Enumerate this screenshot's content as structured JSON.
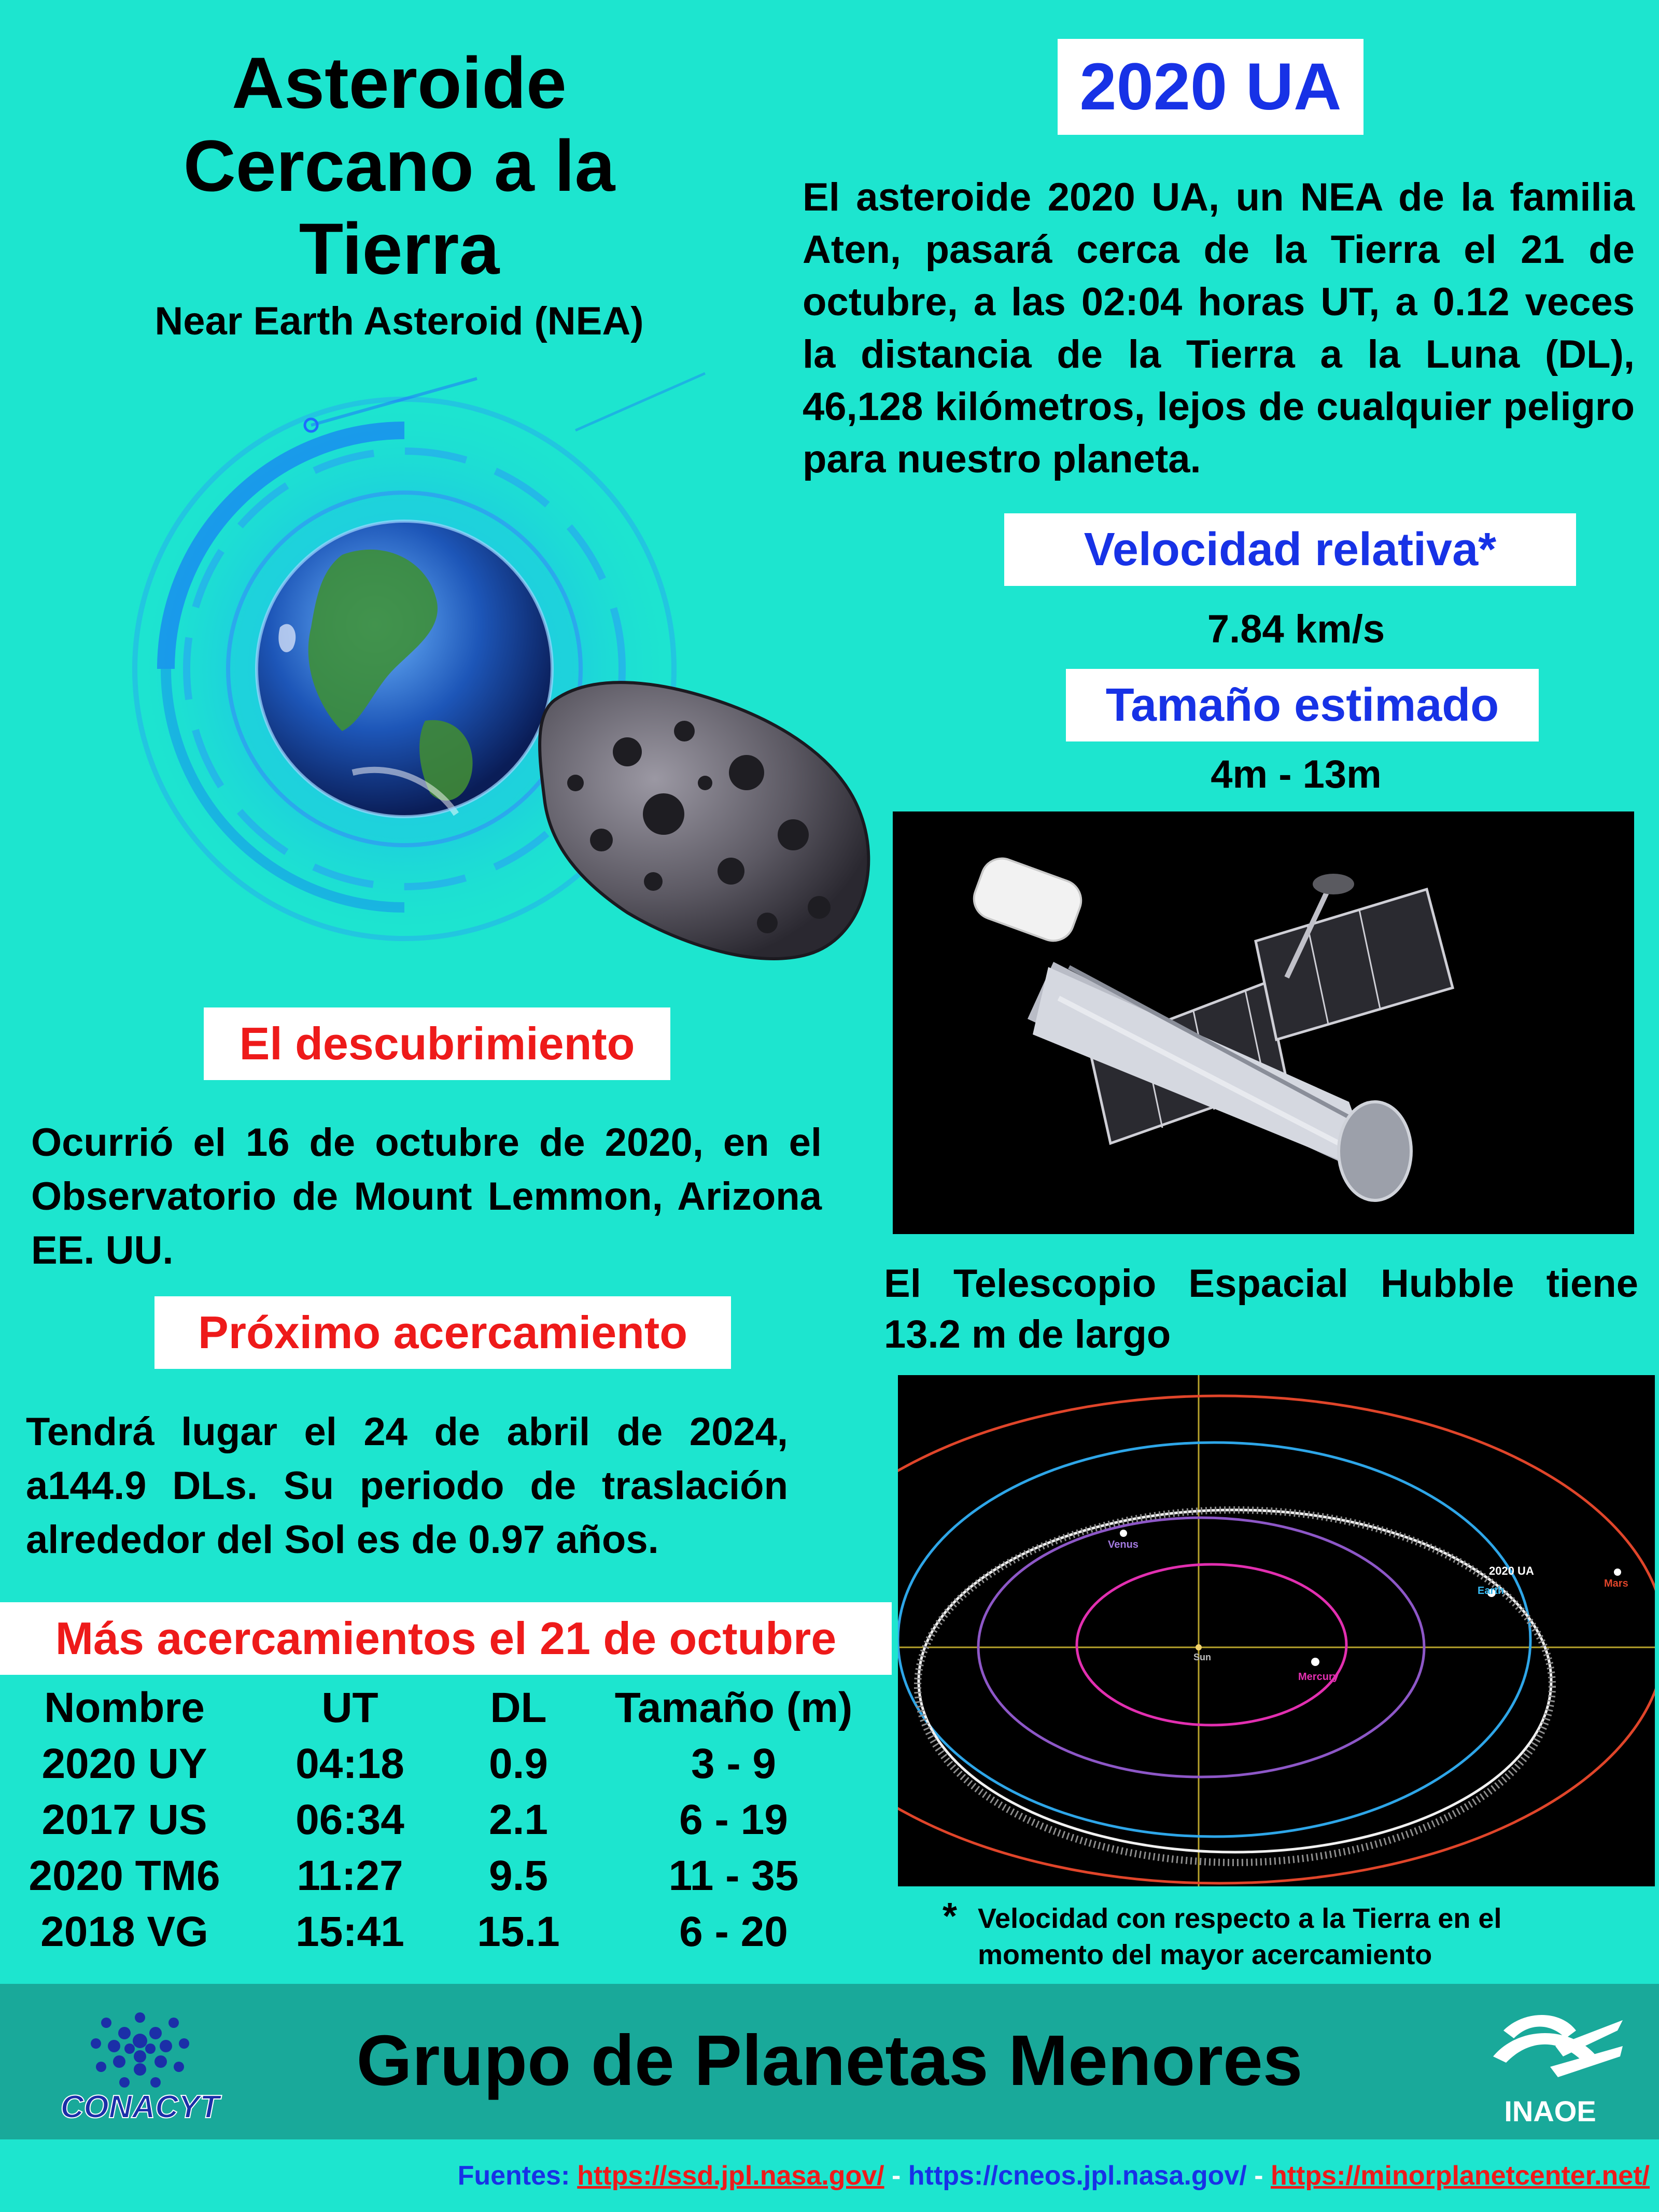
{
  "title": {
    "line1": "Asteroide",
    "line2": "Cercano a la",
    "line3": "Tierra",
    "subtitle": "Near Earth Asteroid (NEA)"
  },
  "asteroid_name": "2020 UA",
  "intro": "El  asteroide 2020 UA, un NEA de  la familia Aten, pasará cerca de la Tierra el 21 de octubre, a las 02:04 horas UT, a 0.12 veces la distancia de la Tierra a la Luna (DL), 46,128 kilómetros, lejos de cualquier peligro para nuestro planeta.",
  "velocity": {
    "label": "Velocidad relativa*",
    "value": "7.84 km/s"
  },
  "size": {
    "label": "Tamaño estimado",
    "value": "4m - 13m"
  },
  "discovery": {
    "label": "El descubrimiento",
    "text": "Ocurrió el 16 de octubre de 2020, en el Observatorio de Mount Lemmon, Arizona EE. UU."
  },
  "next_approach": {
    "label": "Próximo acercamiento",
    "text": "Tendrá lugar el 24 de abril de 2024, a144.9 DLs. Su periodo de traslación alrededor del Sol es de 0.97  años."
  },
  "hubble_caption": "El Telescopio Espacial Hubble tiene 13.2 m de largo",
  "orbit_labels": {
    "venus": "Venus",
    "earth": "Earth",
    "asteroid": "2020 UA",
    "mars": "Mars",
    "sun": "Sun",
    "mercury": "Mercury"
  },
  "more_approaches": {
    "heading": "Más acercamientos el 21 de octubre",
    "columns": [
      "Nombre",
      "UT",
      "DL",
      "Tamaño (m)"
    ],
    "rows": [
      [
        "2020 UY",
        "04:18",
        "0.9",
        "3 - 9"
      ],
      [
        "2017 US",
        "06:34",
        "2.1",
        "6 - 19"
      ],
      [
        "2020 TM6",
        "11:27",
        "9.5",
        "11 - 35"
      ],
      [
        "2018 VG",
        "15:41",
        "15.1",
        "6 - 20"
      ]
    ]
  },
  "footnote": {
    "mark": "*",
    "line1": "Velocidad con respecto a la Tierra en el",
    "line2": "momento del mayor acercamiento"
  },
  "footer": {
    "group": "Grupo de Planetas Menores",
    "logo_left": "CONACYT",
    "logo_right": "INAOE"
  },
  "sources": {
    "label": "Fuentes:",
    "sep1": " - ",
    "sep2": " - ",
    "link1": "https://ssd.jpl.nasa.gov/",
    "link2": "https://cneos.jpl.nasa.gov/",
    "link3": "https://minorplanetcenter.net/"
  },
  "colors": {
    "background": "#1de5cf",
    "footer_band": "#19a99a",
    "heading_blue": "#1732e6",
    "heading_red": "#ee1a1a"
  }
}
